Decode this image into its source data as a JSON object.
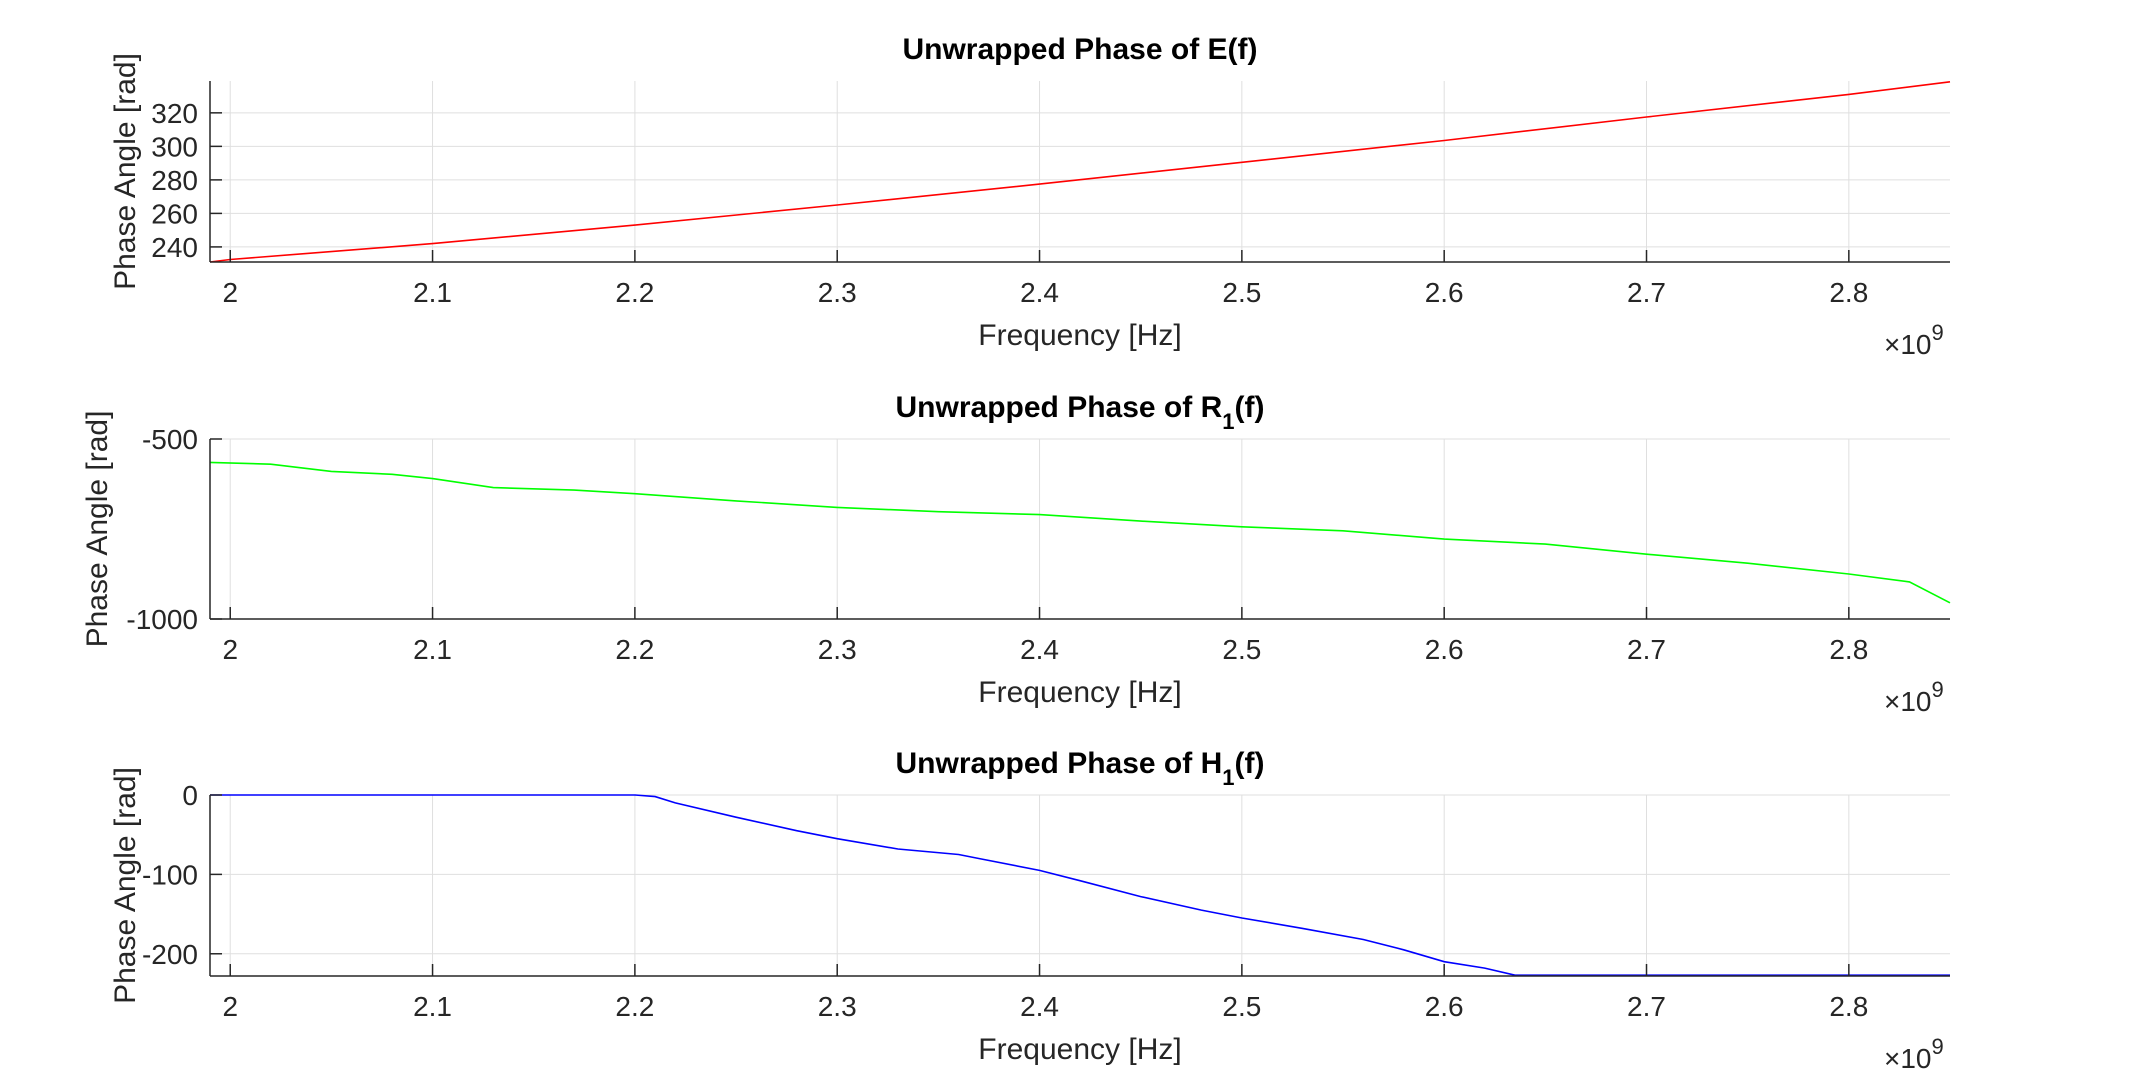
{
  "chart_data": [
    {
      "type": "line",
      "title": "Unwrapped Phase of E(f)",
      "title_main": "Unwrapped Phase of E",
      "title_sub": "",
      "title_tail": "(f)",
      "xlabel": "Frequency [Hz]",
      "ylabel": "Phase Angle [rad]",
      "x_exponent_label": "×10",
      "x_exponent_power": "9",
      "xlim": [
        1.99,
        2.85
      ],
      "ylim": [
        231,
        339
      ],
      "xticks": [
        2,
        2.1,
        2.2,
        2.3,
        2.4,
        2.5,
        2.6,
        2.7,
        2.8
      ],
      "xtick_labels": [
        "2",
        "2.1",
        "2.2",
        "2.3",
        "2.4",
        "2.5",
        "2.6",
        "2.7",
        "2.8"
      ],
      "yticks": [
        240,
        260,
        280,
        300,
        320
      ],
      "ytick_labels": [
        "240",
        "260",
        "280",
        "300",
        "320"
      ],
      "grid": true,
      "color": "#ff0000",
      "series": [
        {
          "x": [
            1.99,
            2.0,
            2.1,
            2.2,
            2.3,
            2.4,
            2.5,
            2.6,
            2.7,
            2.8,
            2.85
          ],
          "values": [
            231,
            232.5,
            242,
            253,
            265,
            277.5,
            290.5,
            303.5,
            317.5,
            331,
            338.5
          ]
        }
      ]
    },
    {
      "type": "line",
      "title": "Unwrapped Phase of R1(f)",
      "title_main": "Unwrapped Phase of R",
      "title_sub": "1",
      "title_tail": "(f)",
      "xlabel": "Frequency [Hz]",
      "ylabel": "Phase Angle [rad]",
      "x_exponent_label": "×10",
      "x_exponent_power": "9",
      "xlim": [
        1.99,
        2.85
      ],
      "ylim": [
        -1000,
        -500
      ],
      "xticks": [
        2,
        2.1,
        2.2,
        2.3,
        2.4,
        2.5,
        2.6,
        2.7,
        2.8
      ],
      "xtick_labels": [
        "2",
        "2.1",
        "2.2",
        "2.3",
        "2.4",
        "2.5",
        "2.6",
        "2.7",
        "2.8"
      ],
      "yticks": [
        -1000,
        -500
      ],
      "ytick_labels": [
        "-1000",
        "-500"
      ],
      "grid": true,
      "color": "#00ff00",
      "series": [
        {
          "x": [
            1.99,
            2.02,
            2.05,
            2.08,
            2.1,
            2.13,
            2.17,
            2.2,
            2.25,
            2.3,
            2.35,
            2.4,
            2.45,
            2.5,
            2.55,
            2.6,
            2.65,
            2.7,
            2.75,
            2.8,
            2.83,
            2.85
          ],
          "values": [
            -565,
            -570,
            -590,
            -598,
            -610,
            -635,
            -642,
            -652,
            -672,
            -690,
            -702,
            -710,
            -728,
            -744,
            -755,
            -778,
            -792,
            -820,
            -845,
            -875,
            -897,
            -955
          ]
        }
      ]
    },
    {
      "type": "line",
      "title": "Unwrapped Phase of H1(f)",
      "title_main": "Unwrapped Phase of H",
      "title_sub": "1",
      "title_tail": "(f)",
      "xlabel": "Frequency [Hz]",
      "ylabel": "Phase Angle [rad]",
      "x_exponent_label": "×10",
      "x_exponent_power": "9",
      "xlim": [
        1.99,
        2.85
      ],
      "ylim": [
        -228,
        0
      ],
      "xticks": [
        2,
        2.1,
        2.2,
        2.3,
        2.4,
        2.5,
        2.6,
        2.7,
        2.8
      ],
      "xtick_labels": [
        "2",
        "2.1",
        "2.2",
        "2.3",
        "2.4",
        "2.5",
        "2.6",
        "2.7",
        "2.8"
      ],
      "yticks": [
        -200,
        -100,
        0
      ],
      "ytick_labels": [
        "-200",
        "-100",
        "0"
      ],
      "grid": true,
      "color": "#0000ff",
      "series": [
        {
          "x": [
            1.99,
            2.1,
            2.2,
            2.21,
            2.22,
            2.25,
            2.28,
            2.3,
            2.33,
            2.36,
            2.37,
            2.4,
            2.42,
            2.45,
            2.48,
            2.5,
            2.53,
            2.56,
            2.58,
            2.6,
            2.62,
            2.635,
            2.7,
            2.8,
            2.85
          ],
          "values": [
            0,
            0,
            0,
            -2,
            -10,
            -28,
            -45,
            -55,
            -68,
            -75,
            -80,
            -95,
            -108,
            -128,
            -145,
            -155,
            -168,
            -182,
            -195,
            -210,
            -218,
            -227,
            -227,
            -227,
            -227
          ]
        }
      ]
    }
  ]
}
